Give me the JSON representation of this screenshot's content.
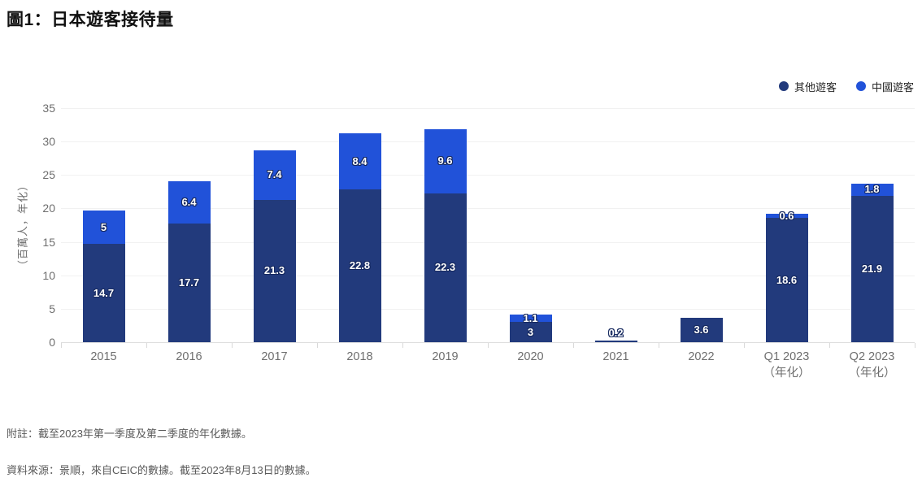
{
  "title": "圖1：日本遊客接待量",
  "footnotes": {
    "note": "附註：截至2023年第一季度及第二季度的年化數據。",
    "source": "資料來源：景順，來自CEIC的數據。截至2023年8月13日的數據。"
  },
  "chart_data": {
    "type": "bar",
    "stacked": true,
    "title": "圖1：日本遊客接待量",
    "xlabel": "",
    "ylabel": "（百萬人，年化）",
    "ylim": [
      0,
      35
    ],
    "yticks": [
      0,
      5,
      10,
      15,
      20,
      25,
      30,
      35
    ],
    "grid": "horizontal",
    "legend_position": "top-right",
    "categories": [
      "2015",
      "2016",
      "2017",
      "2018",
      "2019",
      "2020",
      "2021",
      "2022",
      "Q1 2023\n（年化）",
      "Q2 2023\n（年化）"
    ],
    "series": [
      {
        "name": "其他遊客",
        "color": "#223a7c",
        "values": [
          14.7,
          17.7,
          21.3,
          22.8,
          22.3,
          3,
          0.2,
          3.6,
          18.6,
          21.9
        ]
      },
      {
        "name": "中國遊客",
        "color": "#2152d9",
        "values": [
          5,
          6.4,
          7.4,
          8.4,
          9.6,
          1.1,
          0,
          0,
          0.6,
          1.8
        ]
      }
    ]
  }
}
